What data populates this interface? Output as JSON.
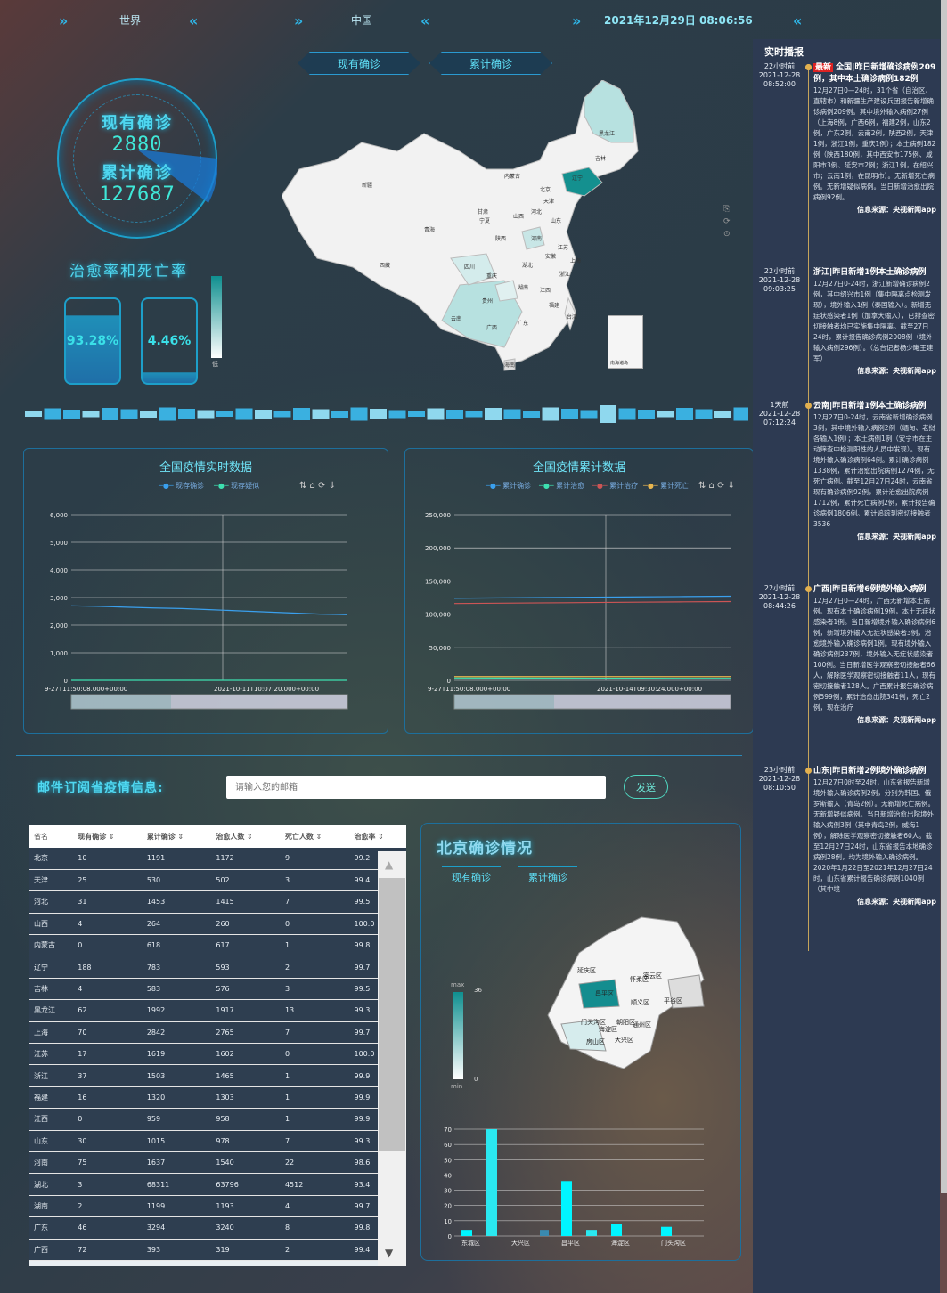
{
  "nav": {
    "world": "世界",
    "china": "中国",
    "datetime": "2021年12月29日 08:06:56"
  },
  "tabs": {
    "current": "现有确诊",
    "total": "累计确诊"
  },
  "summary": {
    "current_label": "现有确诊",
    "current_value": "2880",
    "total_label": "累计确诊",
    "total_value": "127687"
  },
  "rates": {
    "title": "治愈率和死亡率",
    "cure": "93.28%",
    "death": "4.46%"
  },
  "map": {
    "provinces": [
      "黑龙江",
      "吉林",
      "辽宁",
      "新疆",
      "西藏",
      "青海",
      "甘肃",
      "内蒙古",
      "北京",
      "天津",
      "河北",
      "山西",
      "宁夏",
      "陕西",
      "四川",
      "重庆",
      "湖北",
      "河南",
      "山东",
      "江苏",
      "安徽",
      "浙江",
      "上海",
      "湖南",
      "江西",
      "福建",
      "贵州",
      "云南",
      "广西",
      "广东",
      "海南",
      "台湾",
      "南海诸岛"
    ],
    "legend_low": "低"
  },
  "chart1": {
    "title": "全国疫情实时数据",
    "legend": [
      "现存确诊",
      "现存疑似"
    ],
    "yticks": [
      "6,000",
      "5,000",
      "4,000",
      "3,000",
      "2,000",
      "1,000",
      "0"
    ],
    "xticks": [
      "9-27T11:50:08.000+00:00",
      "2021-10-11T10:07:20.000+00:00"
    ]
  },
  "chart2": {
    "title": "全国疫情累计数据",
    "legend": [
      "累计确诊",
      "累计治愈",
      "累计治疗",
      "累计死亡"
    ],
    "yticks": [
      "250,000",
      "200,000",
      "150,000",
      "100,000",
      "50,000",
      "0"
    ],
    "xticks": [
      "9-27T11:50:08.000+00:00",
      "2021-10-14T09:30:24.000+00:00"
    ]
  },
  "subscribe": {
    "label": "邮件订阅省疫情信息:",
    "placeholder": "请输入您的邮箱",
    "button": "发送"
  },
  "table": {
    "headers": [
      "省名",
      "现有确诊",
      "累计确诊",
      "治愈人数",
      "死亡人数",
      "治愈率"
    ],
    "rows": [
      [
        "北京",
        "10",
        "1191",
        "1172",
        "9",
        "99.2"
      ],
      [
        "天津",
        "25",
        "530",
        "502",
        "3",
        "99.4"
      ],
      [
        "河北",
        "31",
        "1453",
        "1415",
        "7",
        "99.5"
      ],
      [
        "山西",
        "4",
        "264",
        "260",
        "0",
        "100.0"
      ],
      [
        "内蒙古",
        "0",
        "618",
        "617",
        "1",
        "99.8"
      ],
      [
        "辽宁",
        "188",
        "783",
        "593",
        "2",
        "99.7"
      ],
      [
        "吉林",
        "4",
        "583",
        "576",
        "3",
        "99.5"
      ],
      [
        "黑龙江",
        "62",
        "1992",
        "1917",
        "13",
        "99.3"
      ],
      [
        "上海",
        "70",
        "2842",
        "2765",
        "7",
        "99.7"
      ],
      [
        "江苏",
        "17",
        "1619",
        "1602",
        "0",
        "100.0"
      ],
      [
        "浙江",
        "37",
        "1503",
        "1465",
        "1",
        "99.9"
      ],
      [
        "福建",
        "16",
        "1320",
        "1303",
        "1",
        "99.9"
      ],
      [
        "江西",
        "0",
        "959",
        "958",
        "1",
        "99.9"
      ],
      [
        "山东",
        "30",
        "1015",
        "978",
        "7",
        "99.3"
      ],
      [
        "河南",
        "75",
        "1637",
        "1540",
        "22",
        "98.6"
      ],
      [
        "湖北",
        "3",
        "68311",
        "63796",
        "4512",
        "93.4"
      ],
      [
        "湖南",
        "2",
        "1199",
        "1193",
        "4",
        "99.7"
      ],
      [
        "广东",
        "46",
        "3294",
        "3240",
        "8",
        "99.8"
      ],
      [
        "广西",
        "72",
        "393",
        "319",
        "2",
        "99.4"
      ]
    ]
  },
  "beijing": {
    "title": "北京确诊情况",
    "tab1": "现有确诊",
    "tab2": "累计确诊",
    "legend_max": "max",
    "legend_max_val": "36",
    "legend_min": "min",
    "legend_min_val": "0",
    "districts": [
      "延庆区",
      "怀柔区",
      "密云区",
      "昌平区",
      "顺义区",
      "平谷区",
      "门头沟区",
      "海淀区",
      "朝阳区",
      "通州区",
      "房山区",
      "大兴区"
    ]
  },
  "bj_chart": {
    "type": "bar",
    "categories": [
      "东城区",
      "大兴区",
      "昌平区",
      "海淀区",
      "门头沟区"
    ],
    "yticks": [
      "70",
      "60",
      "50",
      "40",
      "30",
      "20",
      "10",
      "0"
    ],
    "ylim": [
      0,
      70
    ],
    "series": [
      {
        "values": [
          4,
          70,
          0,
          36,
          0,
          8,
          6,
          0,
          0,
          0
        ]
      },
      {
        "values": [
          0,
          0,
          0,
          4,
          0,
          0,
          0,
          0,
          0,
          0
        ]
      }
    ]
  },
  "chart_data": {
    "type": "bar",
    "categories": [
      "东城区",
      "",
      "大兴区",
      "",
      "昌平区",
      "",
      "海淀区",
      "",
      "门头沟区",
      ""
    ],
    "series": [
      {
        "values": [
          4,
          70,
          0,
          0,
          36,
          4,
          8,
          0,
          6,
          0
        ]
      }
    ],
    "ylim": [
      0,
      70
    ]
  },
  "news": {
    "title": "实时播报",
    "items": [
      {
        "ago": "22小时前",
        "date": "2021-12-28",
        "time": "08:52:00",
        "badge": "最新",
        "title": "全国|昨日新增确诊病例209例，其中本土确诊病例182例",
        "body": "12月27日0—24时，31个省（自治区、直辖市）和新疆生产建设兵团报告新增确诊病例209例。其中境外输入病例27例（上海8例，广西6例，福建2例，山东2例，广东2例，云南2例，陕西2例，天津1例，浙江1例，重庆1例）；本土病例182例（陕西180例，其中西安市175例、咸阳市3例、延安市2例；浙江1例，在绍兴市；云南1例，在昆明市）。无新增死亡病例。无新增疑似病例。当日新增治愈出院病例92例。",
        "src": "信息来源：央视新闻app"
      },
      {
        "ago": "22小时前",
        "date": "2021-12-28",
        "time": "09:03:25",
        "badge": "",
        "title": "浙江|昨日新增1例本土确诊病例",
        "body": "12月27日0-24时，浙江新增确诊病例2例，其中绍兴市1例（集中隔离点检测发现），境外输入1例（泰国输入）。新增无症状感染者1例（加拿大输入），已排查密切接触者均已实施集中隔离。截至27日24时，累计报告确诊病例2008例（境外输入病例296例）。（总台记者杨少曦王建军）",
        "src": "信息来源：央视新闻app"
      },
      {
        "ago": "1天前",
        "date": "2021-12-28",
        "time": "07:12:24",
        "badge": "",
        "title": "云南|昨日新增1例本土确诊病例",
        "body": "12月27日0-24时，云南省新增确诊病例3例，其中境外输入病例2例（缅甸、老挝各输入1例）；本土病例1例（安宁市在主动筛查中检测阳性的人员中发现）。现有境外输入确诊病例64例。累计确诊病例1338例，累计治愈出院病例1274例，无死亡病例。截至12月27日24时，云南省现有确诊病例92例，累计治愈出院病例1712例，累计死亡病例2例，累计报告确诊病例1806例。累计追踪到密切接触者3536",
        "src": "信息来源：央视新闻app"
      },
      {
        "ago": "22小时前",
        "date": "2021-12-28",
        "time": "08:44:26",
        "badge": "",
        "title": "广西|昨日新增6例境外输入病例",
        "body": "12月27日0—24时，广西无新增本土病例。现有本土确诊病例19例，本土无症状感染者1例。当日新增境外输入确诊病例6例，新增境外输入无症状感染者3例，治愈境外输入确诊病例1例。现有境外输入确诊病例237例，境外输入无症状感染者100例。当日新增医学观察密切接触者66人，解除医学观察密切接触者11人，现有密切接触者128人。广西累计报告确诊病例599例，累计治愈出院341例，死亡2例，现在治疗",
        "src": "信息来源：央视新闻app"
      },
      {
        "ago": "23小时前",
        "date": "2021-12-28",
        "time": "08:10:50",
        "badge": "",
        "title": "山东|昨日新增2例境外确诊病例",
        "body": "12月27日0时至24时，山东省报告新增境外输入确诊病例2例，分别为韩国、俄罗斯输入（青岛2例）。无新增死亡病例。无新增疑似病例。当日新增治愈出院境外输入病例3例（其中青岛2例，威海1例），解除医学观察密切接触者60人。截至12月27日24时，山东省报告本地确诊病例28例，均为境外输入确诊病例。2020年1月22日至2021年12月27日24时，山东省累计报告确诊病例1040例（其中境",
        "src": "信息来源：央视新闻app"
      }
    ]
  }
}
